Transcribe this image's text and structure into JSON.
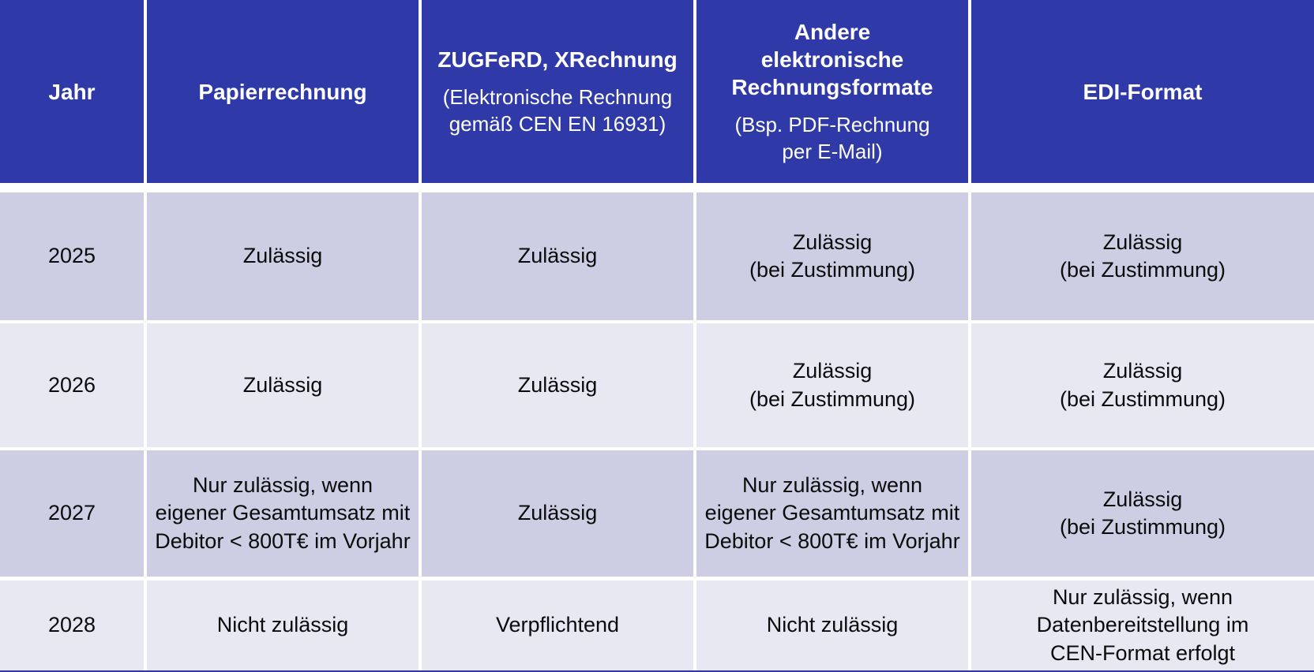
{
  "colors": {
    "header_bg": "#2F39A7",
    "row_dark": "#CDCEE3",
    "row_light": "#E8E8F3",
    "grid": "#FFFFFF",
    "text_header": "#FFFFFF",
    "text_body": "#0B0B0B"
  },
  "chart_data": {
    "type": "table",
    "title": "",
    "columns": [
      {
        "title": "Jahr",
        "subtitle": ""
      },
      {
        "title": "Papierrechnung",
        "subtitle": ""
      },
      {
        "title": "ZUGFeRD, XRechnung",
        "subtitle": "(Elektronische Rechnung\ngemäß CEN EN 16931)"
      },
      {
        "title": "Andere\nelektronische\nRechnungsformate",
        "subtitle": "(Bsp. PDF-Rechnung\nper E-Mail)"
      },
      {
        "title": "EDI-Format",
        "subtitle": ""
      }
    ],
    "rows": [
      {
        "cells": [
          "2025",
          "Zulässig",
          "Zulässig",
          "Zulässig\n(bei Zustimmung)",
          "Zulässig\n(bei Zustimmung)"
        ]
      },
      {
        "cells": [
          "2026",
          "Zulässig",
          "Zulässig",
          "Zulässig\n(bei Zustimmung)",
          "Zulässig\n(bei Zustimmung)"
        ]
      },
      {
        "cells": [
          "2027",
          "Nur zulässig, wenn\neigener Gesamtumsatz mit\nDebitor < 800T€ im Vorjahr",
          "Zulässig",
          "Nur zulässig, wenn\neigener Gesamtumsatz mit\nDebitor < 800T€ im Vorjahr",
          "Zulässig\n(bei Zustimmung)"
        ]
      },
      {
        "cells": [
          "2028",
          "Nicht zulässig",
          "Verpflichtend",
          "Nicht zulässig",
          "Nur zulässig, wenn\nDatenbereitstellung im\nCEN-Format erfolgt"
        ]
      }
    ]
  }
}
